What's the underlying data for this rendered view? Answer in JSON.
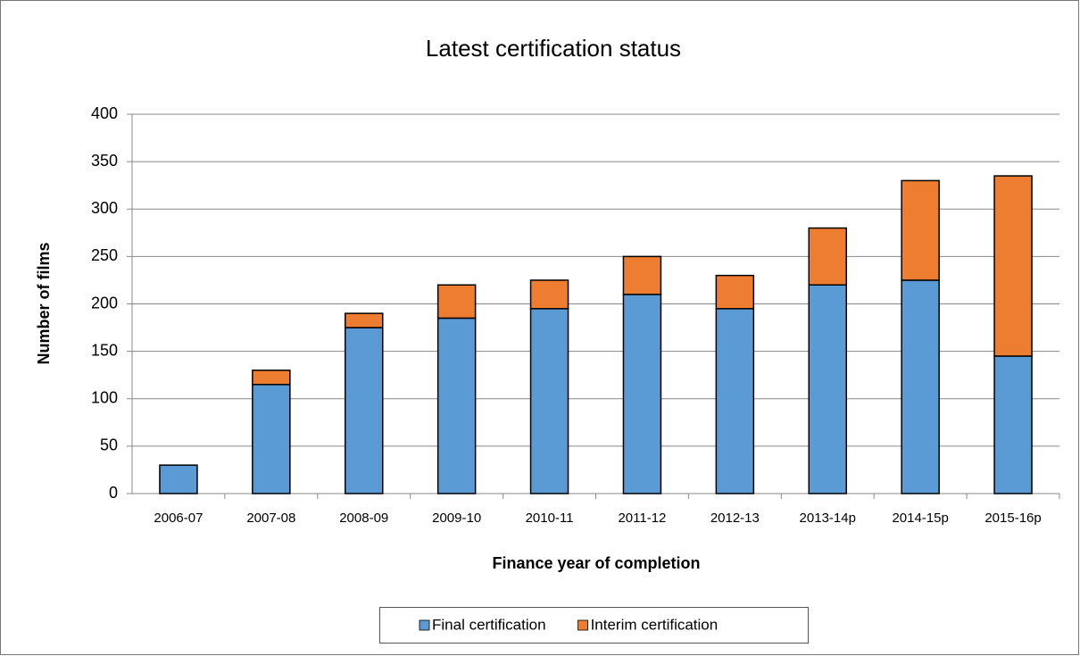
{
  "chart_data": {
    "type": "stacked_bar",
    "title": "Latest certification status",
    "x_label": "Finance year of completion",
    "y_label": "Number of films",
    "categories": [
      "2006-07",
      "2007-08",
      "2008-09",
      "2009-10",
      "2010-11",
      "2011-12",
      "2012-13",
      "2013-14p",
      "2014-15p",
      "2015-16p"
    ],
    "series": [
      {
        "name": "Final certification",
        "color": "#5b9bd5",
        "values": [
          30,
          115,
          175,
          185,
          195,
          210,
          195,
          220,
          225,
          145
        ]
      },
      {
        "name": "Interim certification",
        "color": "#ed7d31",
        "values": [
          0,
          15,
          15,
          35,
          30,
          40,
          35,
          60,
          105,
          190
        ]
      }
    ],
    "ylim": [
      0,
      400
    ],
    "yticks": [
      0,
      50,
      100,
      150,
      200,
      250,
      300,
      350,
      400
    ],
    "grid": true,
    "legend": "bottom"
  }
}
